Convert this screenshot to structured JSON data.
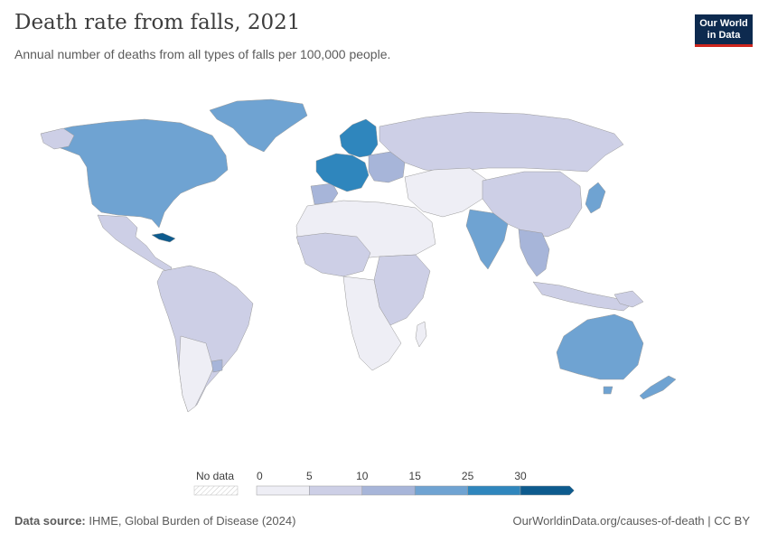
{
  "header": {
    "title": "Death rate from falls, 2021",
    "subtitle": "Annual number of deaths from all types of falls per 100,000 people."
  },
  "logo": {
    "line1": "Our World",
    "line2": "in Data"
  },
  "legend": {
    "no_data_label": "No data",
    "ticks": [
      "0",
      "5",
      "10",
      "15",
      "25",
      "30"
    ],
    "bins": [
      {
        "from": 0,
        "to": 5,
        "color": "#eeeef5"
      },
      {
        "from": 5,
        "to": 10,
        "color": "#cdcfe6"
      },
      {
        "from": 10,
        "to": 15,
        "color": "#a7b5d9"
      },
      {
        "from": 15,
        "to": 25,
        "color": "#6fa3d2"
      },
      {
        "from": 25,
        "to": 30,
        "color": "#2f86bd"
      },
      {
        "from": 30,
        "to": null,
        "color": "#0d5b8e"
      }
    ]
  },
  "footer": {
    "source_label": "Data source:",
    "source_text": "IHME, Global Burden of Disease (2024)",
    "url_text": "OurWorldinData.org/causes-of-death | CC BY"
  }
}
